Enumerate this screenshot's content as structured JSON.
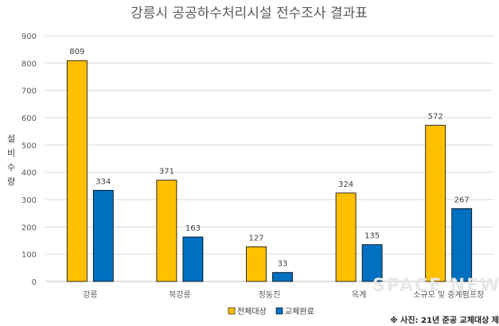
{
  "chart_data": {
    "type": "bar",
    "title": "강릉시 공공하수처리시설 전수조사 결과표",
    "ylabel": "설비수량",
    "xlabel": "",
    "categories": [
      "강릉",
      "북강릉",
      "정동진",
      "옥계",
      "소규모 및 중계펌프장"
    ],
    "series": [
      {
        "name": "전체대상",
        "values": [
          809,
          371,
          127,
          324,
          572
        ],
        "color": "#FFC000"
      },
      {
        "name": "교체완료",
        "values": [
          334,
          163,
          33,
          135,
          267
        ],
        "color": "#0070C0"
      }
    ],
    "ylim": [
      0,
      900
    ],
    "yticks": [
      0,
      100,
      200,
      300,
      400,
      500,
      600,
      700,
      800,
      900
    ],
    "grid": true,
    "legend_position": "bottom"
  },
  "note": "※ 사진: 21년 준공 교체대상 제",
  "watermark": "SPACE NEWS"
}
